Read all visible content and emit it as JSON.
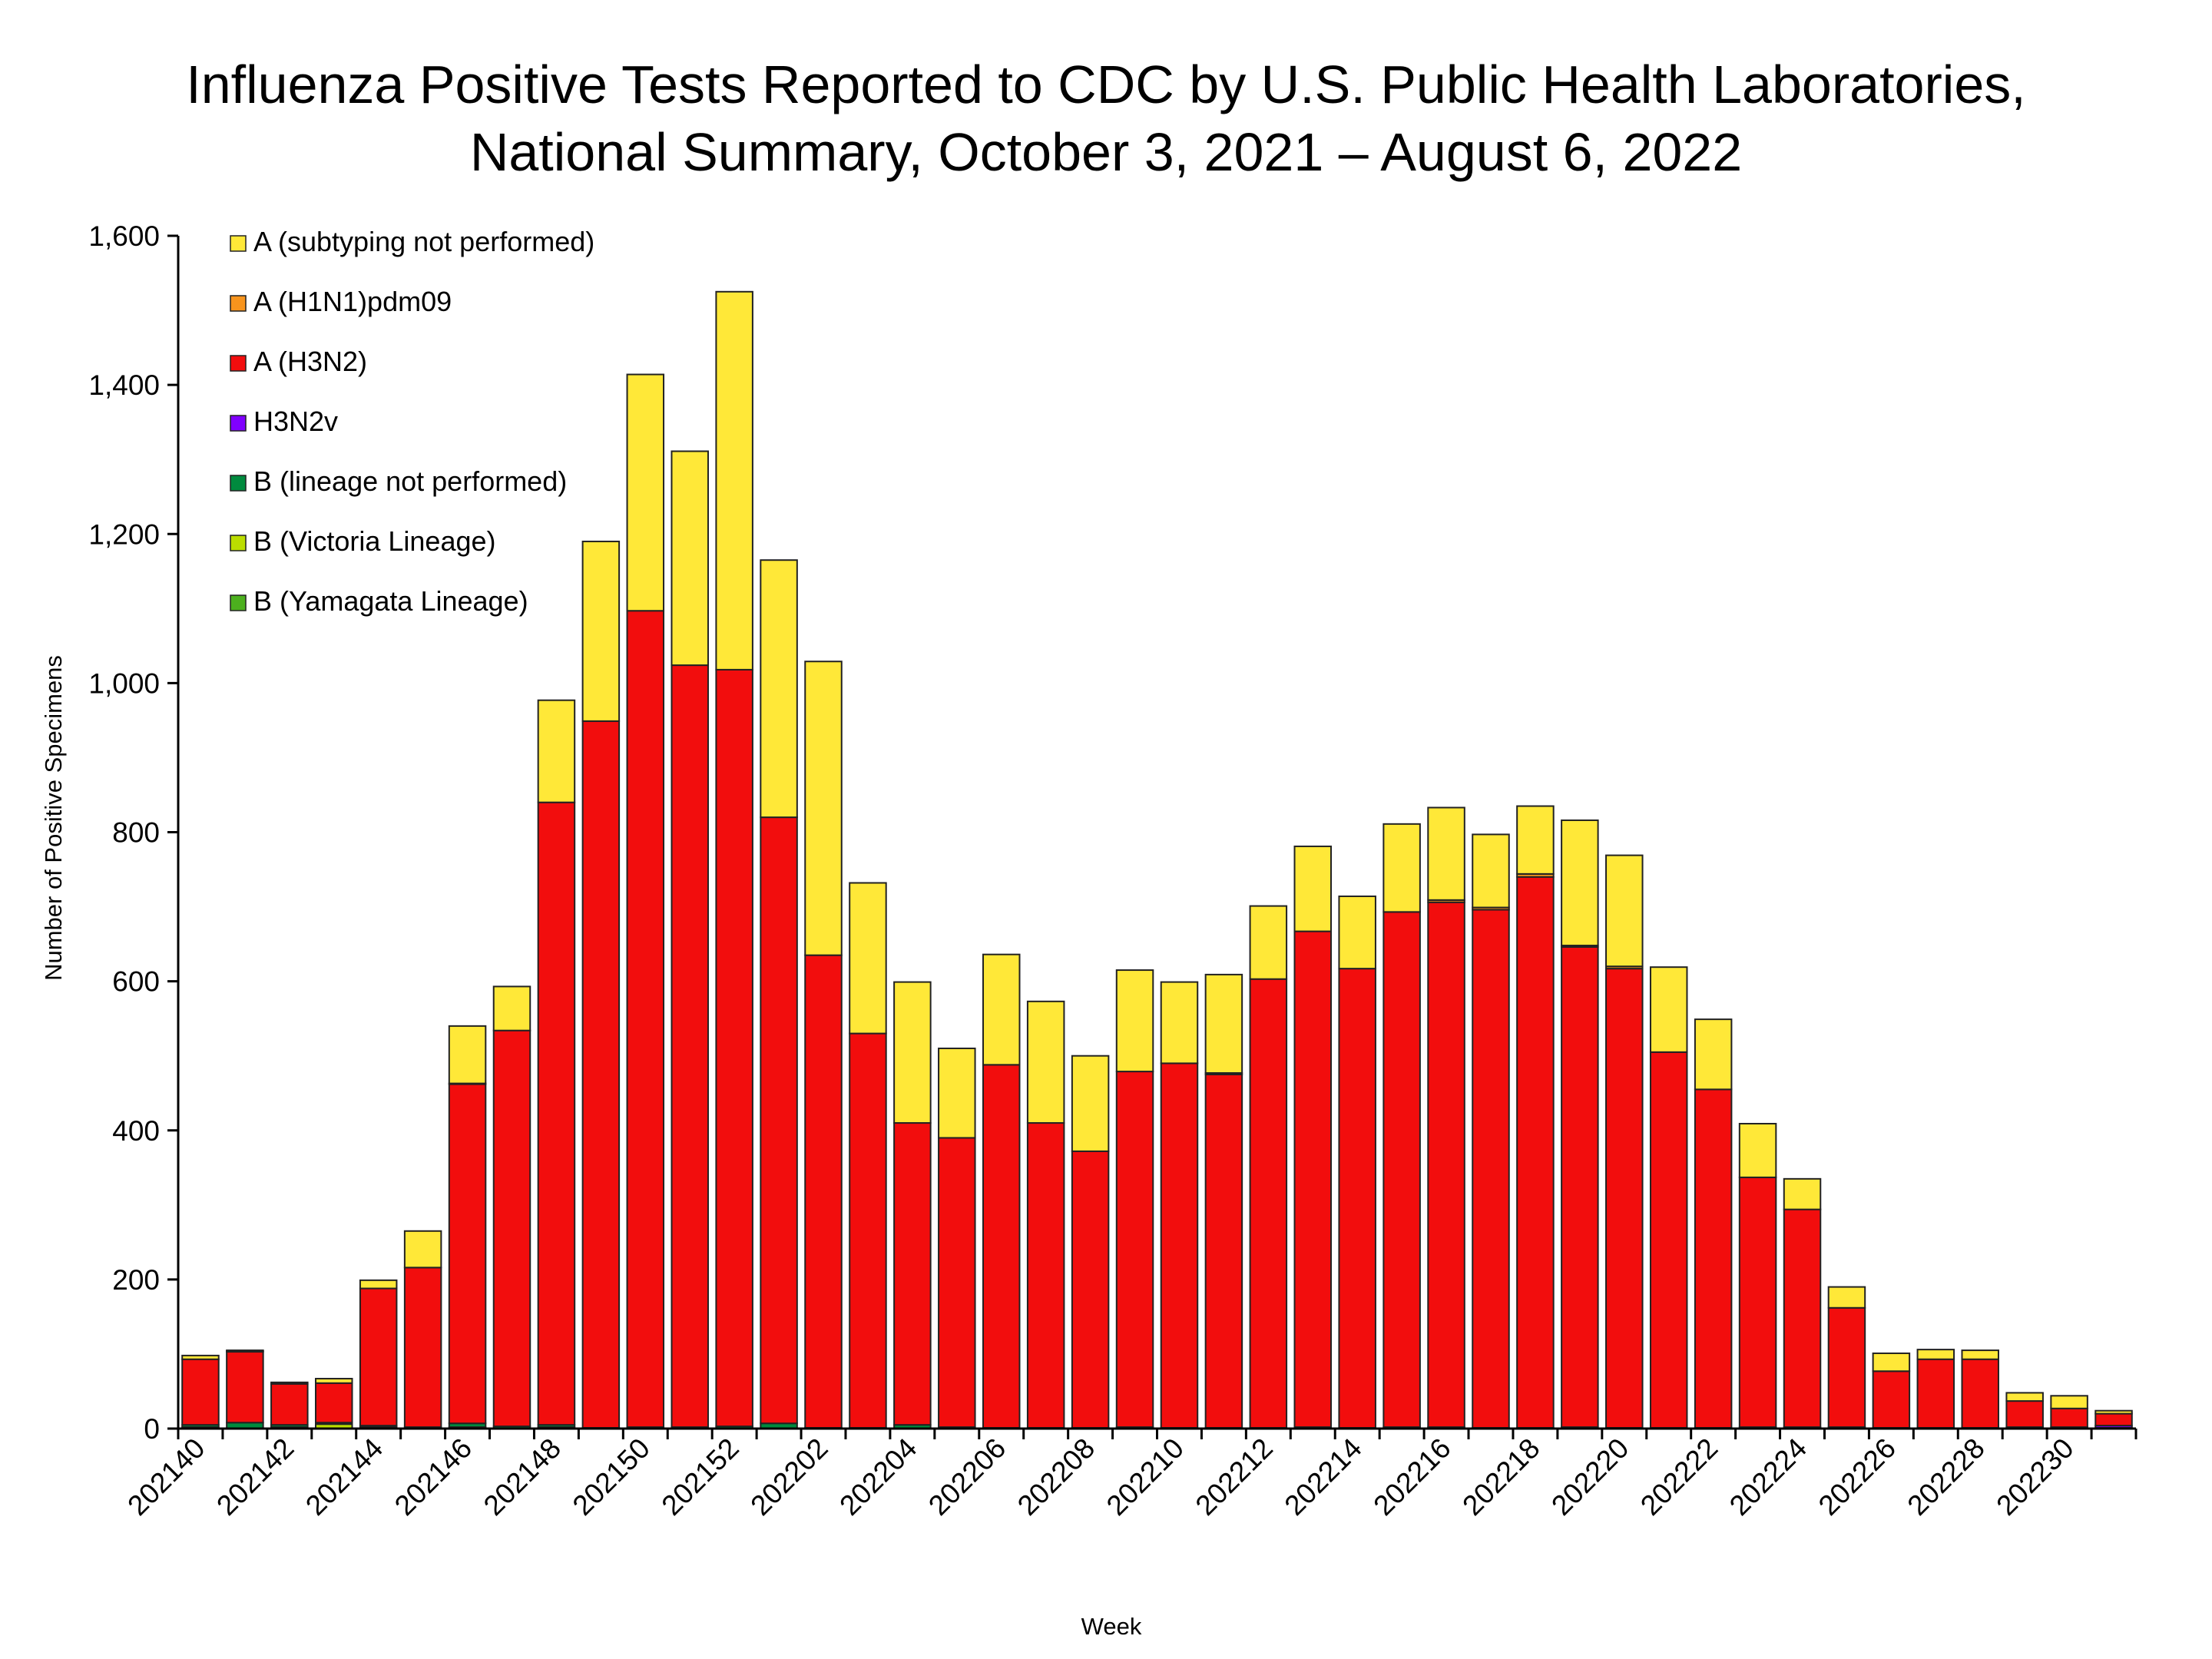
{
  "chart_data": {
    "type": "bar",
    "stacked": true,
    "title": [
      "Influenza Positive Tests Reported to CDC by U.S. Public Health Laboratories,",
      "National Summary, October 3, 2021 – August 6, 2022"
    ],
    "xlabel": "Week",
    "ylabel": "Number of Positive Specimens",
    "ylim": [
      0,
      1600
    ],
    "yticks": [
      0,
      200,
      400,
      600,
      800,
      1000,
      1200,
      1400,
      1600
    ],
    "ytick_labels": [
      "0",
      "200",
      "400",
      "600",
      "800",
      "1,000",
      "1,200",
      "1,400",
      "1,600"
    ],
    "grid": false,
    "legend_placement": "top-left",
    "categories": [
      "202140",
      "202141",
      "202142",
      "202143",
      "202144",
      "202145",
      "202146",
      "202147",
      "202148",
      "202149",
      "202150",
      "202151",
      "202152",
      "202201",
      "202202",
      "202203",
      "202204",
      "202205",
      "202206",
      "202207",
      "202208",
      "202209",
      "202210",
      "202211",
      "202212",
      "202213",
      "202214",
      "202215",
      "202216",
      "202217",
      "202218",
      "202219",
      "202220",
      "202221",
      "202222",
      "202223",
      "202224",
      "202225",
      "202226",
      "202227",
      "202228",
      "202229",
      "202230",
      "202231"
    ],
    "xtick_labels": [
      "202140",
      "202142",
      "202144",
      "202146",
      "202148",
      "202150",
      "202152",
      "202202",
      "202204",
      "202206",
      "202208",
      "202210",
      "202212",
      "202214",
      "202216",
      "202218",
      "202220",
      "202222",
      "202224",
      "202226",
      "202228",
      "202230"
    ],
    "series": [
      {
        "name": "B (Yamagata Lineage)",
        "color": "#4CB01E",
        "values": [
          0,
          0,
          0,
          0,
          0,
          0,
          0,
          0,
          0,
          0,
          0,
          0,
          0,
          0,
          0,
          0,
          0,
          0,
          0,
          0,
          0,
          0,
          0,
          0,
          0,
          0,
          0,
          0,
          0,
          0,
          0,
          0,
          0,
          0,
          0,
          0,
          0,
          0,
          0,
          0,
          0,
          0,
          0,
          0
        ]
      },
      {
        "name": "B (Victoria Lineage)",
        "color": "#BBDD00",
        "values": [
          2,
          0,
          2,
          6,
          2,
          0,
          2,
          0,
          2,
          0,
          0,
          0,
          0,
          0,
          0,
          0,
          0,
          0,
          0,
          0,
          0,
          0,
          0,
          0,
          0,
          0,
          0,
          0,
          0,
          0,
          0,
          0,
          0,
          0,
          0,
          0,
          0,
          0,
          0,
          0,
          0,
          0,
          0,
          0
        ]
      },
      {
        "name": "B (lineage not performed)",
        "color": "#008A3E",
        "values": [
          3,
          8,
          3,
          2,
          2,
          2,
          5,
          3,
          3,
          1,
          2,
          2,
          3,
          7,
          1,
          1,
          5,
          2,
          1,
          1,
          1,
          2,
          1,
          1,
          1,
          2,
          1,
          2,
          2,
          1,
          1,
          2,
          1,
          1,
          1,
          2,
          2,
          2,
          1,
          1,
          1,
          2,
          2,
          1
        ]
      },
      {
        "name": "H3N2v",
        "color": "#8000FF",
        "values": [
          0,
          0,
          0,
          0,
          0,
          0,
          0,
          0,
          0,
          0,
          0,
          0,
          0,
          0,
          0,
          0,
          0,
          0,
          0,
          0,
          0,
          0,
          0,
          0,
          0,
          0,
          0,
          0,
          0,
          0,
          0,
          0,
          0,
          0,
          0,
          0,
          0,
          0,
          0,
          0,
          0,
          0,
          0,
          3
        ]
      },
      {
        "name": "A (H3N2)",
        "color": "#F20D0D",
        "values": [
          88,
          95,
          55,
          53,
          184,
          214,
          455,
          531,
          835,
          948,
          1095,
          1022,
          1015,
          813,
          634,
          529,
          405,
          388,
          487,
          409,
          371,
          477,
          489,
          474,
          602,
          665,
          616,
          691,
          704,
          695,
          739,
          644,
          616,
          504,
          454,
          335,
          292,
          160,
          76,
          92,
          92,
          35,
          25,
          16
        ]
      },
      {
        "name": "A (H1N1)pdm09",
        "color": "#F7941D",
        "values": [
          0,
          1,
          0,
          0,
          0,
          0,
          1,
          0,
          0,
          0,
          0,
          0,
          0,
          0,
          0,
          0,
          0,
          0,
          0,
          0,
          0,
          0,
          0,
          2,
          0,
          0,
          0,
          0,
          3,
          3,
          4,
          2,
          3,
          0,
          0,
          0,
          0,
          0,
          0,
          0,
          0,
          0,
          0,
          0
        ]
      },
      {
        "name": "A (subtyping not performed)",
        "color": "#FFE838",
        "values": [
          5,
          1,
          2,
          6,
          11,
          49,
          77,
          59,
          137,
          241,
          317,
          287,
          507,
          345,
          394,
          202,
          189,
          120,
          148,
          163,
          128,
          136,
          109,
          132,
          98,
          114,
          97,
          118,
          124,
          98,
          91,
          168,
          149,
          114,
          94,
          72,
          41,
          28,
          24,
          13,
          12,
          11,
          17,
          4
        ]
      }
    ]
  }
}
